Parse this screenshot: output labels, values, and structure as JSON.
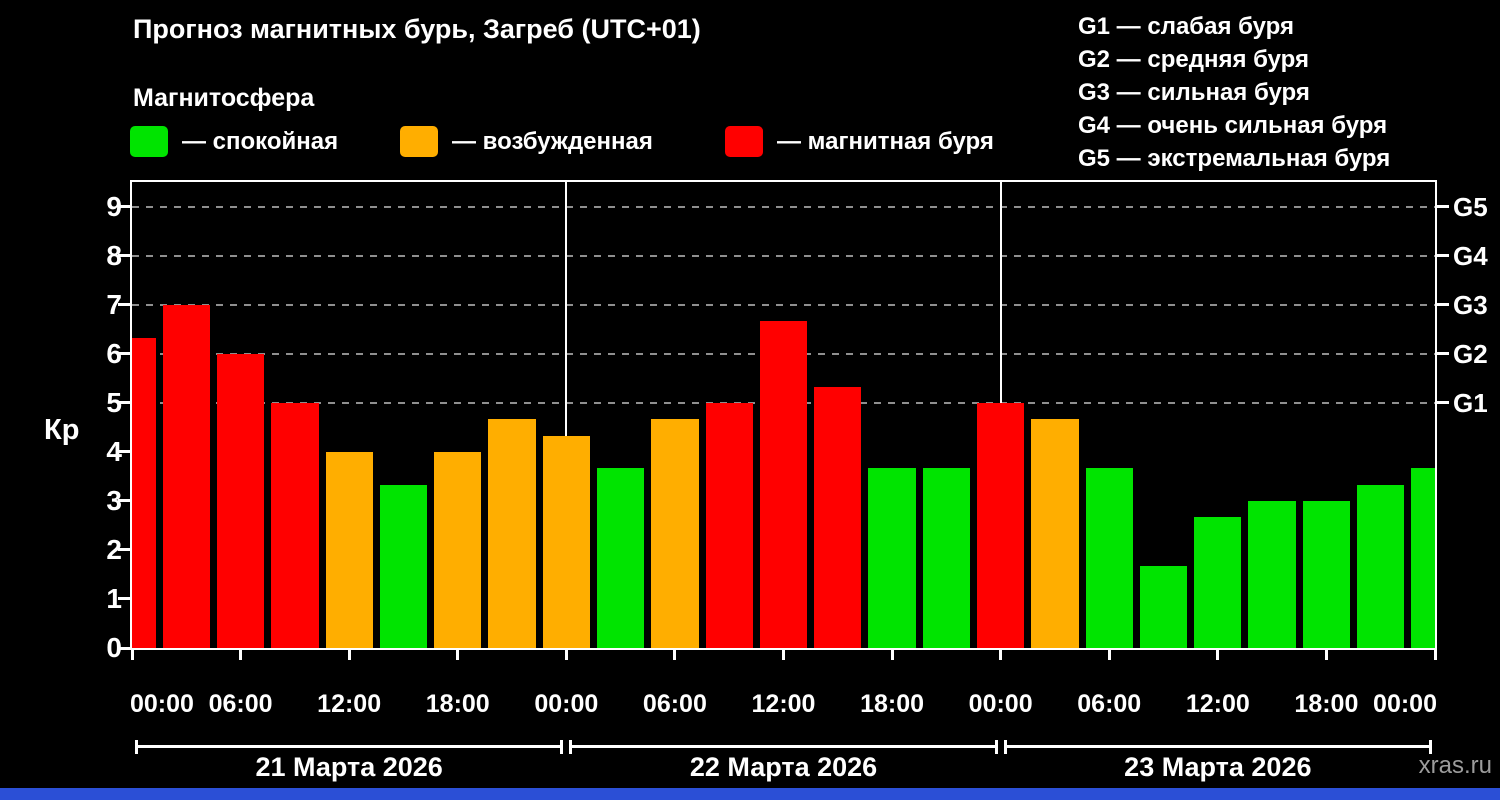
{
  "header": {
    "title": "Прогноз магнитных бурь, Загреб (UTC+01)",
    "subtitle": "Магнитосфера"
  },
  "legend": {
    "items": [
      {
        "key": "quiet",
        "label": "— спокойная",
        "color": "#00e400"
      },
      {
        "key": "excited",
        "label": "— возбужденная",
        "color": "#ffae00"
      },
      {
        "key": "storm",
        "label": "— магнитная буря",
        "color": "#ff0000"
      }
    ]
  },
  "g_legend": {
    "items": [
      "G1 — слабая буря",
      "G2 — средняя буря",
      "G3 — сильная буря",
      "G4 — очень сильная буря",
      "G5 — экстремальная буря"
    ]
  },
  "chart_data": {
    "type": "bar",
    "title": "Прогноз магнитных бурь, Загреб (UTC+01)",
    "xlabel": "",
    "ylabel": "Кр",
    "ylim": [
      0,
      9.5
    ],
    "x_hours_span": 72,
    "x_tick_every_hours": 6,
    "grid": "dashed horizontal at G-levels",
    "legend_position": "top",
    "y_ticks": [
      0,
      1,
      2,
      3,
      4,
      5,
      6,
      7,
      8,
      9
    ],
    "right_axis": [
      {
        "label": "G1",
        "kp": 5
      },
      {
        "label": "G2",
        "kp": 6
      },
      {
        "label": "G3",
        "kp": 7
      },
      {
        "label": "G4",
        "kp": 8
      },
      {
        "label": "G5",
        "kp": 9
      }
    ],
    "grid_kp_levels": [
      5,
      6,
      7,
      8,
      9
    ],
    "day_separators_hours": [
      24,
      48
    ],
    "x_tick_labels": [
      "00:00",
      "06:00",
      "12:00",
      "18:00",
      "00:00",
      "06:00",
      "12:00",
      "18:00",
      "00:00",
      "06:00",
      "12:00",
      "18:00",
      "00:00"
    ],
    "thresholds": {
      "storm_min": 5,
      "excited_min": 4
    },
    "colors": {
      "quiet": "#00e400",
      "excited": "#ffae00",
      "storm": "#ff0000"
    },
    "bars": [
      {
        "hour": 0,
        "kp": 6.33
      },
      {
        "hour": 3,
        "kp": 7.0
      },
      {
        "hour": 6,
        "kp": 6.0
      },
      {
        "hour": 9,
        "kp": 5.0
      },
      {
        "hour": 12,
        "kp": 4.0
      },
      {
        "hour": 15,
        "kp": 3.33
      },
      {
        "hour": 18,
        "kp": 4.0
      },
      {
        "hour": 21,
        "kp": 4.67
      },
      {
        "hour": 24,
        "kp": 4.33
      },
      {
        "hour": 27,
        "kp": 3.67
      },
      {
        "hour": 30,
        "kp": 4.67
      },
      {
        "hour": 33,
        "kp": 5.0
      },
      {
        "hour": 36,
        "kp": 6.67
      },
      {
        "hour": 39,
        "kp": 5.33
      },
      {
        "hour": 42,
        "kp": 3.67
      },
      {
        "hour": 45,
        "kp": 3.67
      },
      {
        "hour": 48,
        "kp": 5.0
      },
      {
        "hour": 51,
        "kp": 4.67
      },
      {
        "hour": 54,
        "kp": 3.67
      },
      {
        "hour": 57,
        "kp": 1.67
      },
      {
        "hour": 60,
        "kp": 2.67
      },
      {
        "hour": 63,
        "kp": 3.0
      },
      {
        "hour": 66,
        "kp": 3.0
      },
      {
        "hour": 69,
        "kp": 3.33
      },
      {
        "hour": 72,
        "kp": 3.67
      }
    ],
    "days": [
      {
        "label": "21 Марта 2026",
        "start_hour": 0,
        "end_hour": 24
      },
      {
        "label": "22 Марта 2026",
        "start_hour": 24,
        "end_hour": 48
      },
      {
        "label": "23 Марта 2026",
        "start_hour": 48,
        "end_hour": 72
      }
    ]
  },
  "footer": {
    "watermark": "xras.ru"
  },
  "colors": {
    "background": "#000000",
    "axis": "#ffffff",
    "grid": "#8f8f8f",
    "bottom_strip": "#2b4fd6",
    "watermark": "#9c9c9c"
  }
}
